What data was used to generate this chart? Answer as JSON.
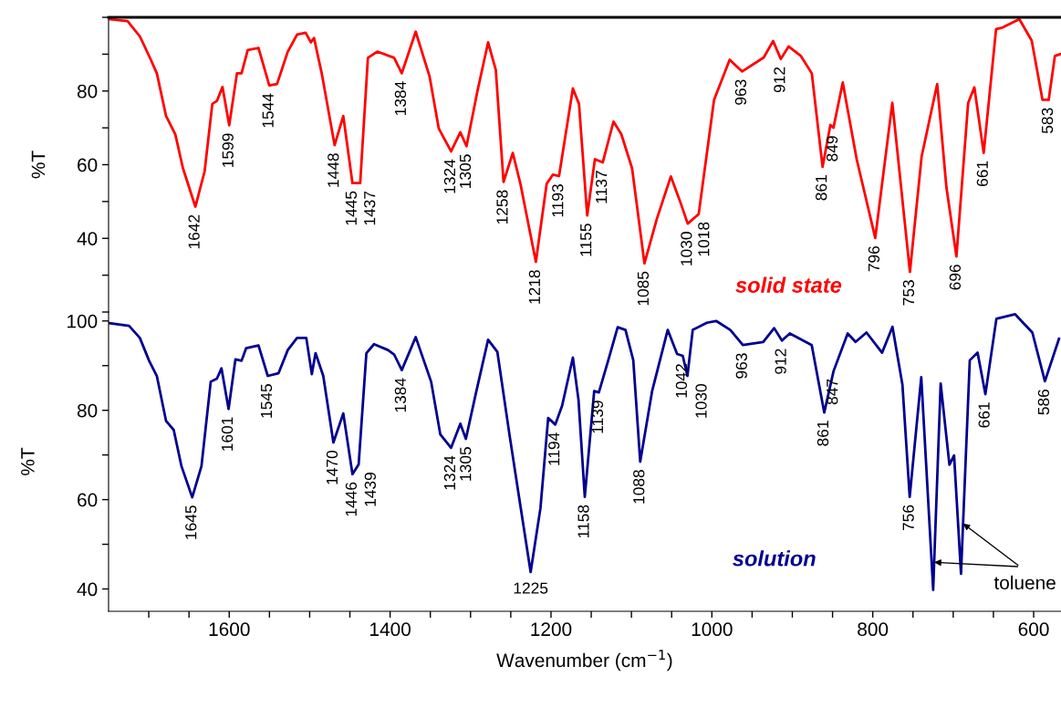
{
  "chart_data": [
    {
      "type": "line",
      "ylabel": "%T",
      "xlim": [
        1750,
        566
      ],
      "ylim": [
        20,
        100
      ],
      "yticks": [
        {
          "value": 20,
          "label": null
        },
        {
          "value": 30,
          "label": null
        },
        40,
        {
          "value": 50,
          "label": null
        },
        60,
        {
          "value": 70,
          "label": null
        },
        80,
        {
          "value": 90,
          "label": null
        },
        {
          "value": 100,
          "label": null
        }
      ],
      "tick_labels": "y",
      "legend": false,
      "grid": false,
      "series": [
        {
          "name": "solid state",
          "color": "#ff0000",
          "x": [
            1749.4,
            1726.4,
            1711,
            1697.7,
            1690,
            1678.5,
            1667,
            1657.5,
            1642.1,
            1630.6,
            1621,
            1615.3,
            1608.4,
            1600,
            1590.4,
            1584.7,
            1577,
            1563.6,
            1550.2,
            1540.6,
            1527.2,
            1515.7,
            1505,
            1498.5,
            1494.6,
            1485,
            1469,
            1458.2,
            1446.8,
            1437.2,
            1427.6,
            1416,
            1395,
            1385.5,
            1368.2,
            1351,
            1339.5,
            1324.2,
            1312.7,
            1305,
            1291.6,
            1278.2,
            1268.6,
            1259,
            1247.5,
            1238,
            1218.8,
            1205.4,
            1197.7,
            1190,
            1172.8,
            1165.2,
            1155,
            1145.4,
            1135.7,
            1122.3,
            1112.6,
            1099.2,
            1083.8,
            1068.4,
            1051,
            1039.5,
            1030,
            1016.4,
            997.3,
            977.9,
            962.5,
            935.5,
            923.9,
            914.3,
            904.7,
            889.3,
            875.8,
            862.4,
            852.7,
            848.9,
            837.3,
            820,
            796.9,
            775.7,
            753.8,
            739.2,
            719.9,
            708.4,
            696,
            681.4,
            673.7,
            662.1,
            646.7,
            639,
            617.8,
            602.4,
            589,
            581.3,
            573.6,
            567
          ],
          "values": [
            99.5,
            99,
            94.8,
            88.6,
            84.8,
            73.2,
            68.2,
            59,
            48.6,
            58.2,
            76.5,
            77.3,
            81.1,
            70.7,
            84.8,
            84.8,
            91.1,
            91.7,
            81.5,
            81.9,
            90.7,
            95.3,
            95.8,
            93.2,
            94.4,
            84.8,
            65.3,
            73.2,
            55,
            55,
            89,
            90.7,
            89,
            84.8,
            96.1,
            84,
            69.8,
            63.6,
            68.8,
            65,
            79.8,
            93.2,
            85.7,
            55.3,
            63.2,
            54.8,
            33.6,
            54.8,
            57.3,
            56.9,
            80.7,
            76.5,
            46.2,
            61.5,
            60.6,
            71.7,
            68.3,
            59,
            33.2,
            45.3,
            56.8,
            50,
            44,
            46.6,
            77.6,
            88.5,
            85.3,
            89.1,
            93.6,
            88.7,
            92.1,
            89.5,
            84.8,
            59.4,
            70.8,
            70,
            82.3,
            61.5,
            40.1,
            76.8,
            30.9,
            62.3,
            81.9,
            53.8,
            35.1,
            76.8,
            81,
            63.2,
            96.8,
            97.2,
            99.5,
            93.7,
            77.6,
            77.6,
            89.5,
            90
          ]
        }
      ],
      "annotations": [
        {
          "text": "1642",
          "x": 1642.1,
          "y": 48.6
        },
        {
          "text": "1599",
          "x": 1600,
          "y": 70.7
        },
        {
          "text": "1544",
          "x": 1550.2,
          "y": 81.5
        },
        {
          "text": "1448",
          "x": 1469,
          "y": 65.3
        },
        {
          "text": "1445",
          "x": 1446.8,
          "y": 55
        },
        {
          "text": "1437",
          "x": 1437.2,
          "y": 55
        },
        {
          "text": "1384",
          "x": 1385.5,
          "y": 84.8
        },
        {
          "text": "1324",
          "x": 1324.2,
          "y": 63.6
        },
        {
          "text": "1305",
          "x": 1305,
          "y": 65
        },
        {
          "text": "1258",
          "x": 1259,
          "y": 55.3
        },
        {
          "text": "1218",
          "x": 1218.8,
          "y": 33.6
        },
        {
          "text": "1193",
          "x": 1190,
          "y": 56.9
        },
        {
          "text": "1155",
          "x": 1155,
          "y": 46.2
        },
        {
          "text": "1137",
          "x": 1135.7,
          "y": 60.6
        },
        {
          "text": "1085",
          "x": 1083.8,
          "y": 33.2
        },
        {
          "text": "1030",
          "x": 1030,
          "y": 44
        },
        {
          "text": "1018",
          "x": 1016.4,
          "y": 46.6
        },
        {
          "text": "963",
          "x": 962.5,
          "y": 85.3
        },
        {
          "text": "912",
          "x": 914.3,
          "y": 88.7
        },
        {
          "text": "861",
          "x": 862.4,
          "y": 59.4
        },
        {
          "text": "849",
          "x": 848.9,
          "y": 70
        },
        {
          "text": "796",
          "x": 796.9,
          "y": 40.1
        },
        {
          "text": "753",
          "x": 753.8,
          "y": 30.9
        },
        {
          "text": "696",
          "x": 696,
          "y": 35.1
        },
        {
          "text": "661",
          "x": 662.1,
          "y": 63.2
        },
        {
          "text": "583",
          "x": 581.3,
          "y": 77.6
        }
      ]
    },
    {
      "type": "line",
      "ylabel": "%T",
      "xlabel": "Wavenumber (cm$^{−1}$)",
      "xlim": [
        1750,
        566
      ],
      "ylim": [
        35,
        102
      ],
      "xticks": [
        {
          "value": 1700,
          "label": null
        },
        {
          "value": 1650,
          "label": null
        },
        1600,
        {
          "value": 1550,
          "label": null
        },
        {
          "value": 1500,
          "label": null
        },
        {
          "value": 1450,
          "label": null
        },
        1400,
        {
          "value": 1350,
          "label": null
        },
        {
          "value": 1300,
          "label": null
        },
        {
          "value": 1250,
          "label": null
        },
        1200,
        {
          "value": 1150,
          "label": null
        },
        {
          "value": 1100,
          "label": null
        },
        {
          "value": 1050,
          "label": null
        },
        1000,
        {
          "value": 950,
          "label": null
        },
        {
          "value": 900,
          "label": null
        },
        {
          "value": 850,
          "label": null
        },
        800,
        {
          "value": 750,
          "label": null
        },
        {
          "value": 700,
          "label": null
        },
        {
          "value": 650,
          "label": null
        },
        600
      ],
      "yticks": [
        40,
        {
          "value": 50,
          "label": null
        },
        60,
        {
          "value": 70,
          "label": null
        },
        80,
        {
          "value": 90,
          "label": null
        },
        100
      ],
      "legend": false,
      "grid": false,
      "series": [
        {
          "name": "solution",
          "color": "#000090",
          "x": [
            1749.4,
            1724.5,
            1711.1,
            1699.6,
            1690,
            1678.5,
            1669,
            1659.4,
            1646,
            1634.5,
            1623,
            1615.3,
            1609.6,
            1600.8,
            1592.3,
            1584.7,
            1579,
            1563.6,
            1552.1,
            1538.7,
            1527.2,
            1515.7,
            1504.2,
            1497.3,
            1492.7,
            1483.1,
            1470.5,
            1458.2,
            1446.8,
            1439.1,
            1429.5,
            1420,
            1402.7,
            1395,
            1385.5,
            1368.2,
            1349,
            1337.6,
            1324.2,
            1312.7,
            1305.8,
            1293.5,
            1278.2,
            1266.7,
            1251.4,
            1239.9,
            1225.3,
            1213.1,
            1203.5,
            1194.7,
            1186.2,
            1172.8,
            1165.8,
            1158,
            1146.3,
            1140.5,
            1128.8,
            1117.1,
            1107.4,
            1097.7,
            1089.1,
            1074.3,
            1054.9,
            1043.2,
            1036.2,
            1030.4,
            1023.8,
            1006.3,
            994.7,
            977.1,
            961.5,
            936.2,
            922.6,
            912.9,
            903.1,
            875.9,
            860.3,
            848.7,
            831.2,
            821.4,
            807.8,
            788.4,
            775.5,
            763.1,
            754.1,
            739.7,
            724.9,
            715.6,
            704.7,
            698.9,
            690.3,
            679.4,
            669.7,
            660,
            646.3,
            623,
            601.6,
            586,
            568.5
          ],
          "values": [
            99.5,
            98.9,
            96.2,
            91.1,
            87.7,
            77.6,
            75.6,
            67.5,
            60.5,
            67.5,
            86.4,
            87.1,
            89.4,
            80.3,
            91.4,
            91.1,
            93.9,
            94.5,
            87.7,
            88.3,
            93.5,
            96.2,
            96.2,
            88.1,
            92.8,
            87.7,
            72.8,
            79.3,
            65.7,
            67.9,
            92.8,
            94.8,
            93.5,
            92.5,
            89,
            96.4,
            86.4,
            74.6,
            71.6,
            77,
            73.6,
            83.7,
            95.8,
            93.1,
            74.3,
            60.8,
            43.8,
            58.1,
            78.3,
            76.8,
            81,
            91.8,
            82.3,
            60.6,
            84.3,
            84,
            91.2,
            98.6,
            98,
            91.2,
            68.5,
            84.3,
            98,
            92.6,
            92.2,
            87.7,
            98,
            99.6,
            100,
            98,
            94.6,
            95.3,
            98.4,
            95.6,
            97.2,
            94.6,
            79.5,
            88.8,
            97.2,
            95.3,
            97.4,
            92.9,
            98.7,
            85.7,
            60.6,
            87.4,
            39.8,
            86,
            67.8,
            69.9,
            43.4,
            91.2,
            92.9,
            83.6,
            100.5,
            101.5,
            97.4,
            86.5,
            96
          ]
        }
      ],
      "annotations": [
        {
          "text": "1645",
          "x": 1646,
          "y": 60.5
        },
        {
          "text": "1601",
          "x": 1600.8,
          "y": 80.3
        },
        {
          "text": "1545",
          "x": 1552.1,
          "y": 87.7
        },
        {
          "text": "1470",
          "x": 1470.5,
          "y": 72.8
        },
        {
          "text": "1446",
          "x": 1446.8,
          "y": 65.7
        },
        {
          "text": "1439",
          "x": 1439.1,
          "y": 67.9
        },
        {
          "text": "1384",
          "x": 1385.5,
          "y": 89
        },
        {
          "text": "1324",
          "x": 1324.2,
          "y": 71.6
        },
        {
          "text": "1305",
          "x": 1305.8,
          "y": 73.6
        },
        {
          "text": "1225",
          "x": 1225.3,
          "y": 43.8
        },
        {
          "text": "1194",
          "x": 1194.7,
          "y": 76.8
        },
        {
          "text": "1158",
          "x": 1158,
          "y": 60.6
        },
        {
          "text": "1139",
          "x": 1140.5,
          "y": 84
        },
        {
          "text": "1088",
          "x": 1089.1,
          "y": 68.5
        },
        {
          "text": "1042",
          "x": 1036.2,
          "y": 92.2
        },
        {
          "text": "1030",
          "x": 1030.4,
          "y": 87.7
        },
        {
          "text": "963",
          "x": 961.5,
          "y": 94.6
        },
        {
          "text": "912",
          "x": 912.9,
          "y": 95.6
        },
        {
          "text": "861",
          "x": 860.3,
          "y": 79.5
        },
        {
          "text": "847",
          "x": 848.7,
          "y": 88.8
        },
        {
          "text": "756",
          "x": 754.1,
          "y": 60.6
        },
        {
          "text": "661",
          "x": 660,
          "y": 83.6
        },
        {
          "text": "586",
          "x": 586,
          "y": 86.5
        },
        {
          "text": "toluene",
          "x": 726.8,
          "y": 46
        }
      ]
    }
  ]
}
